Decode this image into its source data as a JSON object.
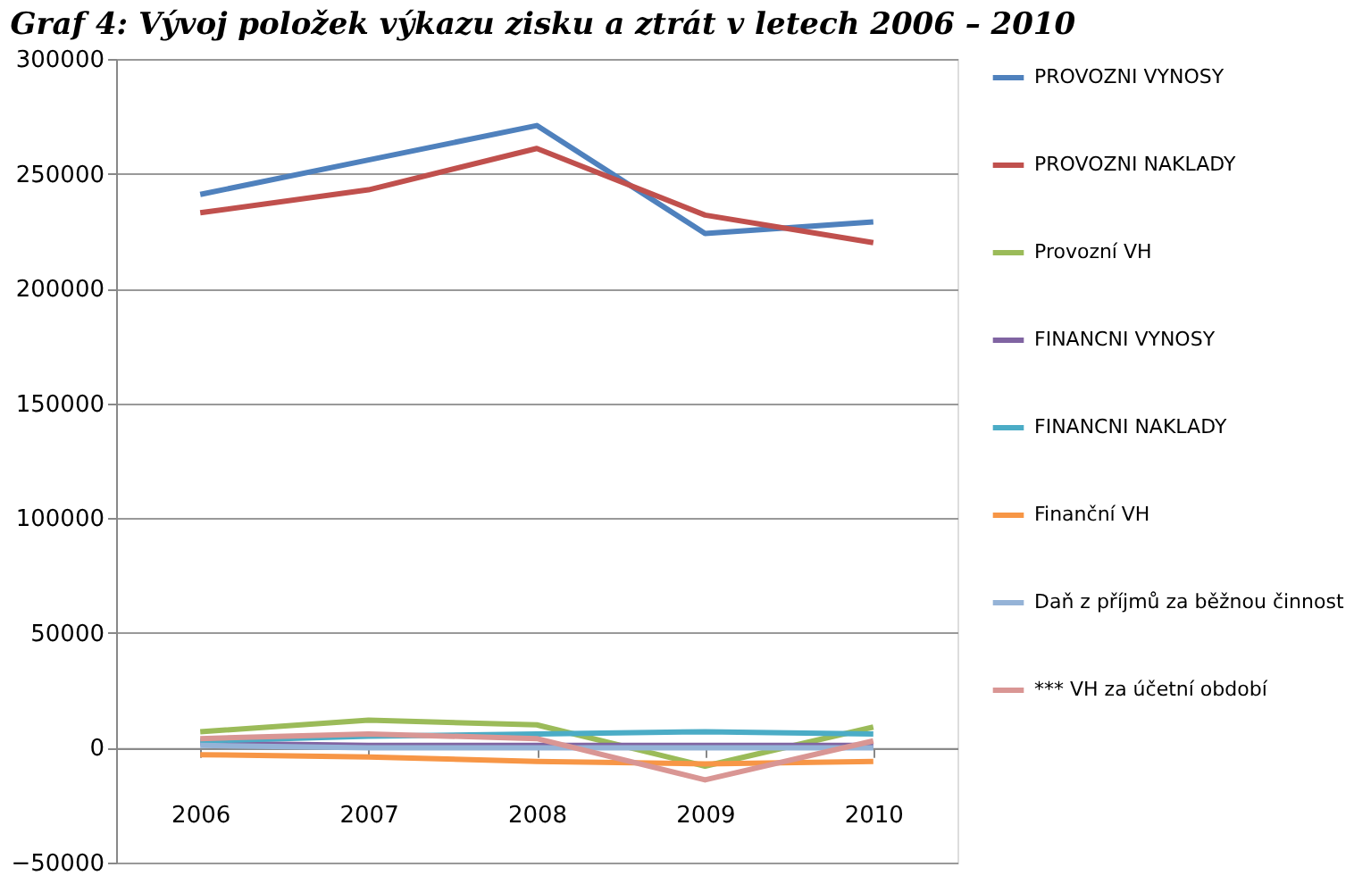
{
  "chart_data": {
    "type": "line",
    "title": "Graf 4: Vývoj položek výkazu zisku a ztrát v letech 2006 – 2010",
    "categories": [
      "2006",
      "2007",
      "2008",
      "2009",
      "2010"
    ],
    "series": [
      {
        "name": "PROVOZNI VYNOSY",
        "color": "#4f81bd",
        "values": [
          241000,
          256000,
          271000,
          224000,
          229000
        ]
      },
      {
        "name": "PROVOZNI NAKLADY",
        "color": "#c0504d",
        "values": [
          233000,
          243000,
          261000,
          232000,
          220000
        ]
      },
      {
        "name": "Provozní VH",
        "color": "#9bbb59",
        "values": [
          7000,
          12000,
          10000,
          -8000,
          9000
        ]
      },
      {
        "name": "FINANCNI VYNOSY",
        "color": "#8064a2",
        "values": [
          2000,
          1000,
          1000,
          1000,
          1000
        ]
      },
      {
        "name": "FINANCNI NAKLADY",
        "color": "#4bacc6",
        "values": [
          3000,
          5000,
          6000,
          7000,
          6000
        ]
      },
      {
        "name": "Finanční VH",
        "color": "#f79646",
        "values": [
          -3000,
          -4000,
          -6000,
          -7000,
          -6000
        ]
      },
      {
        "name": "Daň z příjmů za běžnou činnost",
        "color": "#95b3d7",
        "values": [
          1000,
          0,
          0,
          0,
          0
        ]
      },
      {
        "name": "*** VH za účetní období",
        "color": "#d99694",
        "values": [
          4000,
          6000,
          4000,
          -14000,
          3000
        ]
      }
    ],
    "ylim": [
      -50000,
      300000
    ],
    "yticks": [
      -50000,
      0,
      50000,
      100000,
      150000,
      200000,
      250000,
      300000
    ],
    "grid": "y",
    "legend": "right",
    "marker": "none",
    "line_style": "solid"
  }
}
